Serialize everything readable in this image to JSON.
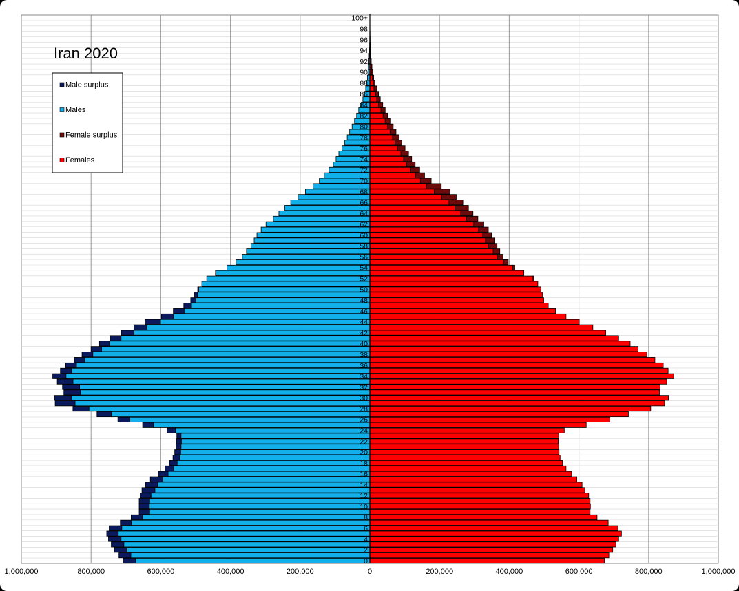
{
  "chart_data": {
    "type": "bar",
    "orientation": "horizontal",
    "title": "Iran 2020",
    "xlim": [
      -1000000,
      1000000
    ],
    "x_ticks": [
      {
        "value": -1000000,
        "label": "1,000,000"
      },
      {
        "value": -800000,
        "label": "800,000"
      },
      {
        "value": -600000,
        "label": "600,000"
      },
      {
        "value": -400000,
        "label": "400,000"
      },
      {
        "value": -200000,
        "label": "200,000"
      },
      {
        "value": 0,
        "label": "0"
      },
      {
        "value": 200000,
        "label": "200,000"
      },
      {
        "value": 400000,
        "label": "400,000"
      },
      {
        "value": 600000,
        "label": "600,000"
      },
      {
        "value": 800000,
        "label": "800,000"
      },
      {
        "value": 1000000,
        "label": "1,000,000"
      }
    ],
    "grid": true,
    "legend_position": "top-left",
    "legend": [
      {
        "name": "Male surplus",
        "color": "#0b1a5c"
      },
      {
        "name": "Males",
        "color": "#12b0ea"
      },
      {
        "name": "Female surplus",
        "color": "#6b0b0b"
      },
      {
        "name": "Females",
        "color": "#ff0000"
      }
    ],
    "age_tick_labels": [
      "0",
      "2",
      "4",
      "6",
      "8",
      "10",
      "12",
      "14",
      "16",
      "18",
      "20",
      "22",
      "24",
      "26",
      "28",
      "30",
      "32",
      "34",
      "36",
      "38",
      "40",
      "42",
      "44",
      "46",
      "48",
      "50",
      "52",
      "54",
      "56",
      "58",
      "60",
      "62",
      "64",
      "66",
      "68",
      "70",
      "72",
      "74",
      "76",
      "78",
      "80",
      "82",
      "84",
      "86",
      "88",
      "90",
      "92",
      "94",
      "96",
      "98",
      "100+"
    ],
    "ages": [
      "0",
      "1",
      "2",
      "3",
      "4",
      "5",
      "6",
      "7",
      "8",
      "9",
      "10",
      "11",
      "12",
      "13",
      "14",
      "15",
      "16",
      "17",
      "18",
      "19",
      "20",
      "21",
      "22",
      "23",
      "24",
      "25",
      "26",
      "27",
      "28",
      "29",
      "30",
      "31",
      "32",
      "33",
      "34",
      "35",
      "36",
      "37",
      "38",
      "39",
      "40",
      "41",
      "42",
      "43",
      "44",
      "45",
      "46",
      "47",
      "48",
      "49",
      "50",
      "51",
      "52",
      "53",
      "54",
      "55",
      "56",
      "57",
      "58",
      "59",
      "60",
      "61",
      "62",
      "63",
      "64",
      "65",
      "66",
      "67",
      "68",
      "69",
      "70",
      "71",
      "72",
      "73",
      "74",
      "75",
      "76",
      "77",
      "78",
      "79",
      "80",
      "81",
      "82",
      "83",
      "84",
      "85",
      "86",
      "87",
      "88",
      "89",
      "90",
      "91",
      "92",
      "93",
      "94",
      "95",
      "96",
      "97",
      "98",
      "99",
      "100+"
    ],
    "males": [
      708000,
      720000,
      733000,
      742000,
      750000,
      755000,
      748000,
      716000,
      685000,
      662000,
      662000,
      662000,
      659000,
      654000,
      644000,
      630000,
      607000,
      588000,
      575000,
      565000,
      560000,
      556000,
      555000,
      554000,
      582000,
      652000,
      723000,
      783000,
      852000,
      903000,
      905000,
      878000,
      882000,
      897000,
      910000,
      888000,
      873000,
      848000,
      826000,
      800000,
      776000,
      745000,
      713000,
      677000,
      645000,
      598000,
      564000,
      534000,
      514000,
      503000,
      494000,
      482000,
      468000,
      443000,
      410000,
      384000,
      366000,
      354000,
      341000,
      332000,
      324000,
      312000,
      298000,
      277000,
      261000,
      244000,
      227000,
      206000,
      185000,
      163000,
      145000,
      131000,
      117000,
      105000,
      97000,
      89000,
      80000,
      72000,
      65000,
      58000,
      51000,
      44000,
      38000,
      32000,
      25000,
      20000,
      16000,
      12000,
      10000,
      7000,
      5000,
      4000,
      3000,
      2000,
      1200,
      800,
      500,
      300,
      200,
      100,
      100
    ],
    "females": [
      673000,
      686000,
      697000,
      706000,
      714000,
      722000,
      712000,
      684000,
      652000,
      632000,
      633000,
      632000,
      628000,
      617000,
      609000,
      594000,
      579000,
      563000,
      553000,
      546000,
      543000,
      542000,
      541000,
      542000,
      558000,
      621000,
      689000,
      742000,
      806000,
      846000,
      857000,
      831000,
      833000,
      852000,
      872000,
      856000,
      842000,
      818000,
      795000,
      770000,
      747000,
      714000,
      677000,
      640000,
      601000,
      563000,
      533000,
      512000,
      499000,
      495000,
      491000,
      482000,
      471000,
      442000,
      416000,
      397000,
      382000,
      373000,
      365000,
      357000,
      349000,
      340000,
      327000,
      310000,
      296000,
      283000,
      267000,
      248000,
      230000,
      205000,
      176000,
      157000,
      143000,
      130000,
      120000,
      111000,
      101000,
      92000,
      84000,
      75000,
      67000,
      58000,
      51000,
      44000,
      37000,
      30000,
      25000,
      20000,
      15000,
      11000,
      8000,
      6000,
      4000,
      3000,
      2000,
      1200,
      800,
      500,
      300,
      200,
      100
    ]
  }
}
